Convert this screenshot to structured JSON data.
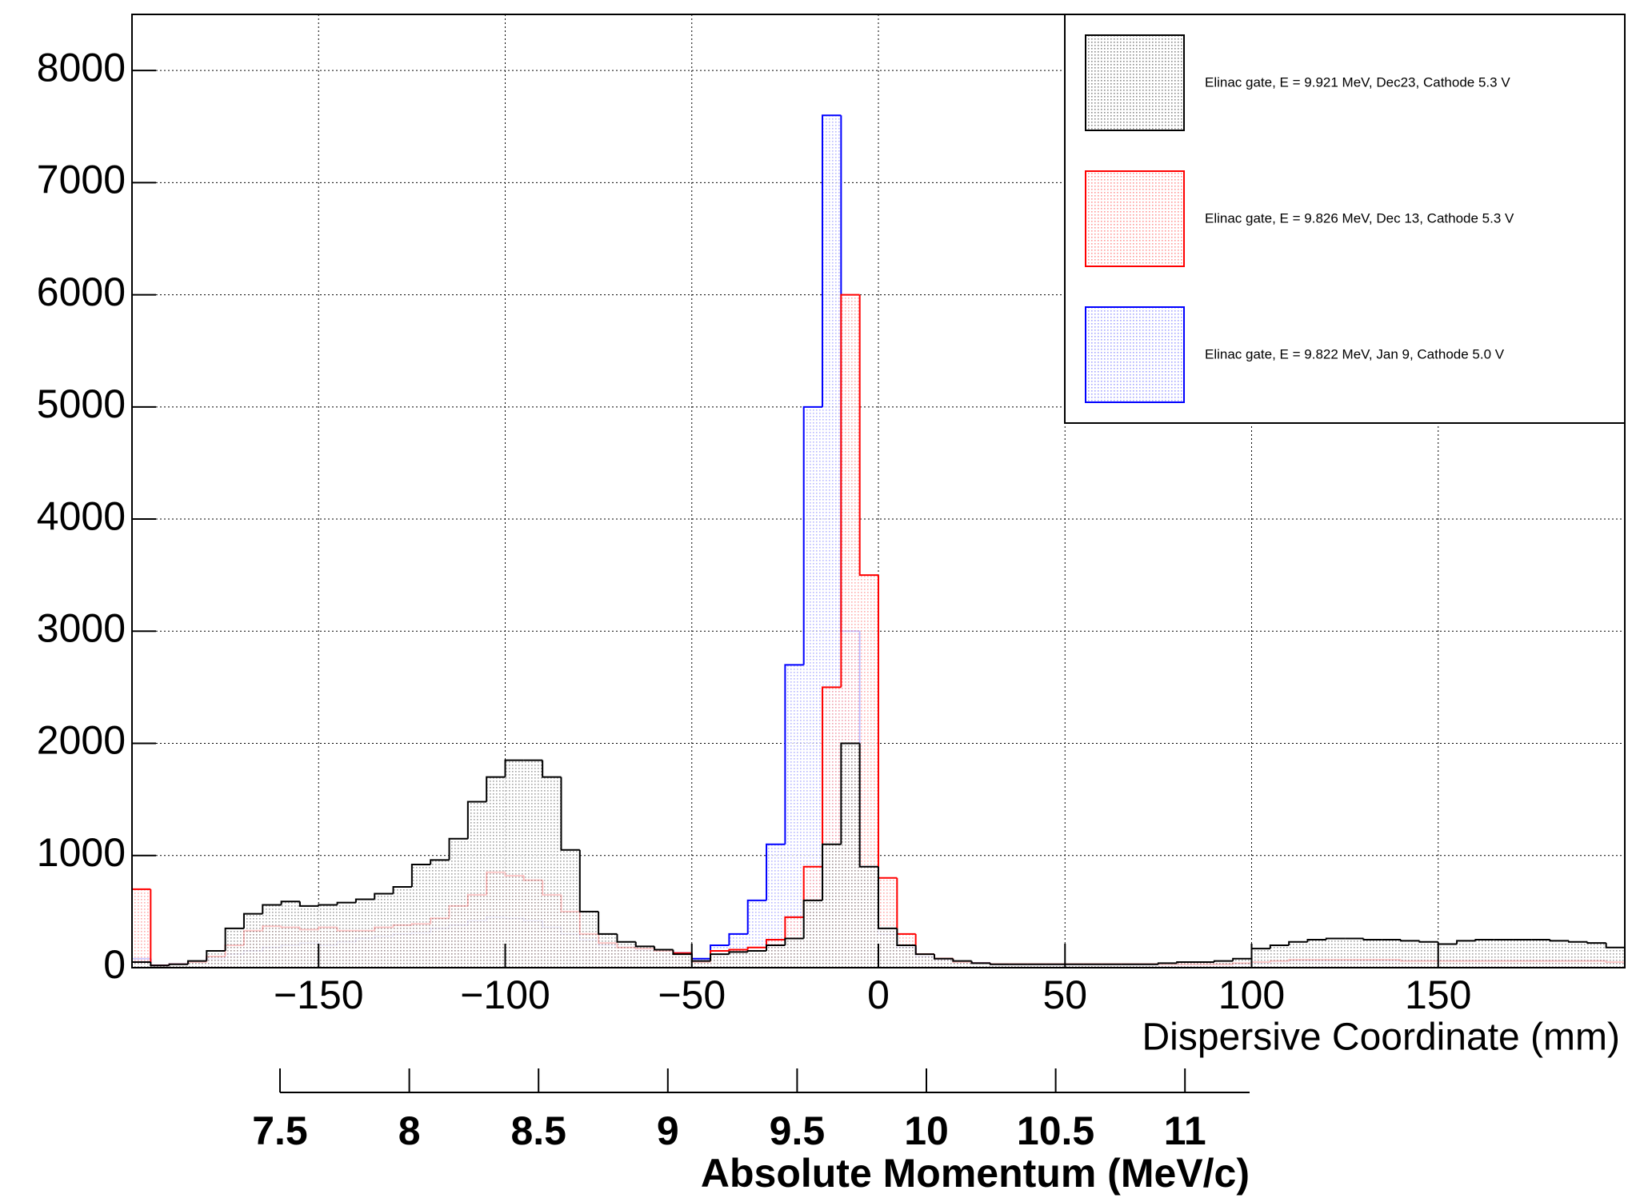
{
  "chart_data": {
    "type": "histogram",
    "x_label": "Dispersive Coordinate (mm)",
    "x2_label": "Absolute Momentum (MeV/c)",
    "xlim": [
      -200,
      200
    ],
    "xticks": [
      {
        "value": -150,
        "label": "−150"
      },
      {
        "value": -100,
        "label": "−100"
      },
      {
        "value": -50,
        "label": "−50"
      },
      0,
      50,
      100,
      150
    ],
    "ylim": [
      0,
      8500
    ],
    "yticks": [
      0,
      1000,
      2000,
      3000,
      4000,
      5000,
      6000,
      7000,
      8000
    ],
    "x2lim": [
      7.5,
      11.25
    ],
    "x2ticks": [
      7.5,
      8,
      8.5,
      9,
      9.5,
      10,
      10.5,
      11
    ],
    "grid": true,
    "legend": "top-right",
    "bins": [
      -200,
      -195,
      -190,
      -185,
      -180,
      -175,
      -170,
      -165,
      -160,
      -155,
      -150,
      -145,
      -140,
      -135,
      -130,
      -125,
      -120,
      -115,
      -110,
      -105,
      -100,
      -95,
      -90,
      -85,
      -80,
      -75,
      -70,
      -65,
      -60,
      -55,
      -50,
      -45,
      -40,
      -35,
      -30,
      -25,
      -20,
      -15,
      -10,
      -5,
      0,
      5,
      10,
      15,
      20,
      25,
      30,
      35,
      40,
      45,
      50,
      55,
      60,
      65,
      70,
      75,
      80,
      85,
      90,
      95,
      100,
      105,
      110,
      115,
      120,
      125,
      130,
      135,
      140,
      145,
      150,
      155,
      160,
      165,
      170,
      175,
      180,
      185,
      190,
      195,
      200
    ],
    "series": [
      {
        "name": "Elinac gate, E = 9.921 MeV, Dec23, Cathode 5.3 V",
        "color": "#000000",
        "values": [
          50,
          20,
          30,
          60,
          150,
          350,
          480,
          560,
          590,
          550,
          560,
          580,
          610,
          660,
          720,
          920,
          960,
          1150,
          1480,
          1700,
          1850,
          1850,
          1700,
          1050,
          500,
          300,
          230,
          190,
          160,
          120,
          60,
          120,
          140,
          150,
          200,
          260,
          600,
          1100,
          2000,
          900,
          350,
          200,
          120,
          80,
          60,
          40,
          30,
          30,
          30,
          30,
          30,
          30,
          30,
          30,
          30,
          40,
          50,
          50,
          60,
          80,
          170,
          200,
          230,
          250,
          260,
          260,
          250,
          250,
          240,
          230,
          210,
          240,
          250,
          250,
          250,
          250,
          240,
          230,
          220,
          180
        ]
      },
      {
        "name": "Elinac gate, E = 9.826 MeV, Dec 13, Cathode 5.3 V",
        "color": "#ff0000",
        "values": [
          700,
          20,
          30,
          50,
          100,
          200,
          330,
          370,
          360,
          340,
          360,
          330,
          330,
          360,
          380,
          390,
          440,
          550,
          650,
          850,
          820,
          780,
          650,
          500,
          300,
          220,
          180,
          170,
          150,
          130,
          50,
          150,
          160,
          180,
          250,
          450,
          900,
          2500,
          6000,
          3500,
          800,
          300,
          120,
          80,
          50,
          40,
          30,
          30,
          30,
          30,
          30,
          30,
          30,
          30,
          30,
          30,
          30,
          30,
          30,
          40,
          50,
          60,
          70,
          70,
          70,
          70,
          70,
          70,
          60,
          60,
          60,
          60,
          60,
          60,
          60,
          60,
          60,
          60,
          60,
          50
        ]
      },
      {
        "name": "Elinac gate, E = 9.822 MeV, Jan 9, Cathode 5.0 V",
        "color": "#0000ff",
        "values": [
          80,
          20,
          30,
          50,
          80,
          120,
          150,
          180,
          200,
          220,
          200,
          230,
          260,
          280,
          300,
          310,
          350,
          380,
          420,
          450,
          440,
          420,
          360,
          300,
          250,
          200,
          180,
          160,
          150,
          130,
          80,
          200,
          300,
          600,
          1100,
          2700,
          5000,
          7600,
          3000,
          900,
          300,
          180,
          100,
          70,
          50,
          40,
          25,
          25,
          25,
          25,
          25,
          25,
          25,
          25,
          25,
          25,
          25,
          25,
          25,
          30,
          40,
          50,
          60,
          60,
          60,
          60,
          60,
          60,
          60,
          60,
          60,
          60,
          60,
          60,
          60,
          60,
          60,
          60,
          60,
          50
        ]
      }
    ]
  }
}
